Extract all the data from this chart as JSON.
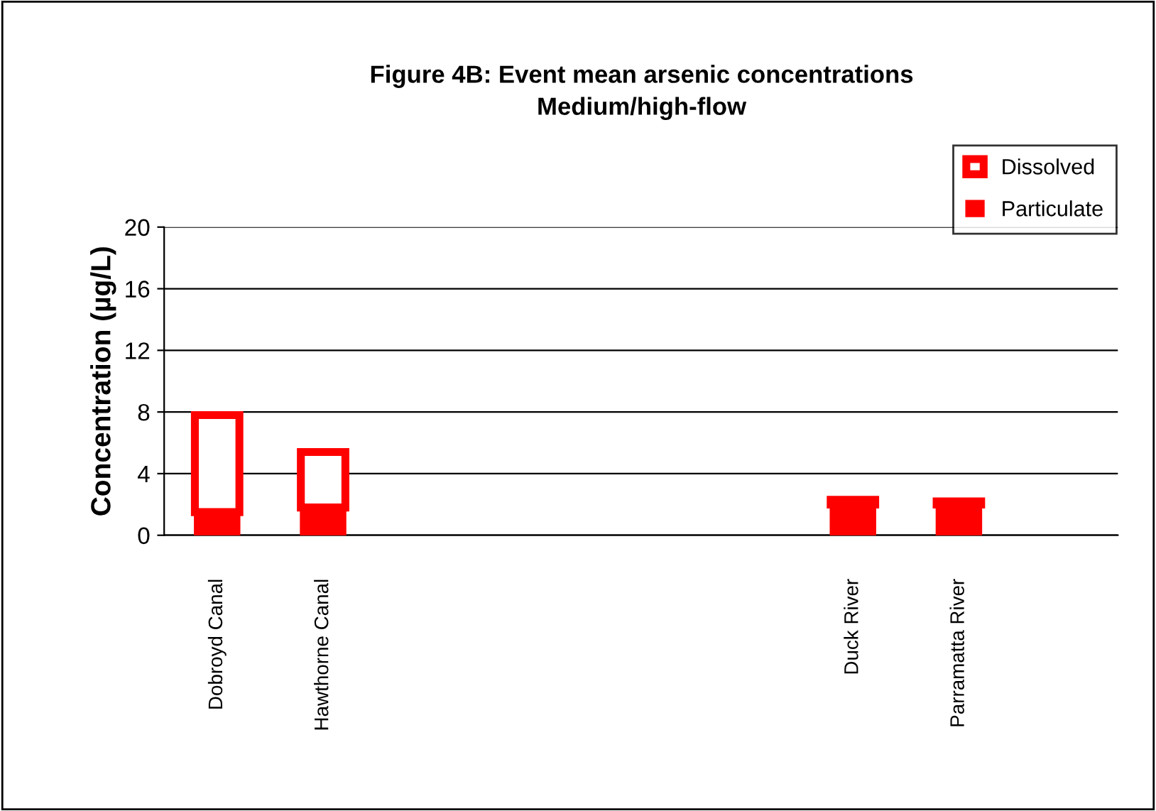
{
  "chart_data": {
    "type": "bar",
    "title": "Figure 4B: Event mean arsenic concentrations\nMedium/high-flow",
    "ylabel": "Concentration (µg/L)",
    "categories": [
      "Dobroyd Canal",
      "Hawthorne Canal",
      null,
      null,
      null,
      null,
      "Duck River",
      "Parramatta River",
      null
    ],
    "stacked": true,
    "series": [
      {
        "name": "Particulate",
        "color": "#ff0000",
        "values": [
          1.5,
          1.8,
          null,
          null,
          null,
          null,
          2.0,
          2.0,
          null
        ]
      },
      {
        "name": "Dissolved",
        "color": "#ff0000",
        "values": [
          6.3,
          3.6,
          null,
          null,
          null,
          null,
          0.3,
          0.2,
          null
        ]
      }
    ],
    "ylim": [
      0,
      20
    ],
    "yticks": [
      0,
      4,
      8,
      12,
      16,
      20
    ],
    "grid": "y",
    "legend": "top right"
  }
}
